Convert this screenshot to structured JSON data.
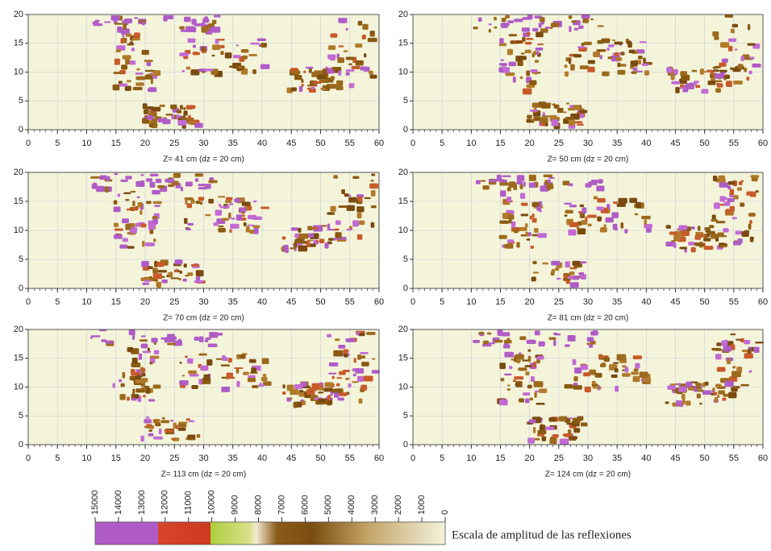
{
  "axes": {
    "xlim": [
      0,
      60
    ],
    "xticks": [
      0,
      5,
      10,
      15,
      20,
      25,
      30,
      35,
      40,
      45,
      50,
      55,
      60
    ],
    "ylim": [
      0,
      20
    ],
    "yticks": [
      0,
      5,
      10,
      15,
      20
    ]
  },
  "panels": [
    {
      "caption": "Z= 41 cm  (dz = 20 cm)"
    },
    {
      "caption": "Z= 50 cm  (dz = 20 cm)"
    },
    {
      "caption": "Z= 70 cm  (dz = 20 cm)"
    },
    {
      "caption": "Z= 81 cm  (dz = 20 cm)"
    },
    {
      "caption": "Z= 113 cm  (dz = 20 cm)"
    },
    {
      "caption": "Z= 124 cm  (dz = 20 cm)"
    }
  ],
  "colorbar": {
    "range": [
      15000,
      0
    ],
    "ticks": [
      15000,
      14000,
      13000,
      12000,
      11000,
      10000,
      9000,
      8000,
      7000,
      6000,
      5000,
      4000,
      3000,
      2000,
      1000,
      0
    ],
    "label": "Escala de amplitud de las reflexiones"
  }
}
